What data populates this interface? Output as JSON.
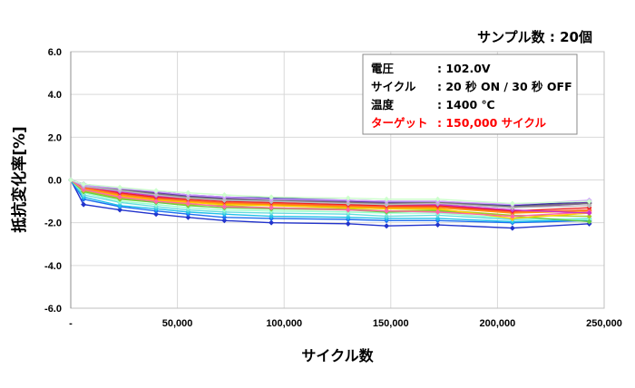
{
  "chart_data": {
    "type": "line",
    "xlabel": "サイクル数",
    "ylabel": "抵抗変化率[%]",
    "xlim": [
      0,
      250000
    ],
    "ylim": [
      -6.0,
      6.0
    ],
    "x_ticks": [
      0,
      50000,
      100000,
      150000,
      200000,
      250000
    ],
    "x_tick_labels": [
      "-",
      "50,000",
      "100,000",
      "150,000",
      "200,000",
      "250,000"
    ],
    "y_ticks": [
      6.0,
      4.0,
      2.0,
      0.0,
      -2.0,
      -4.0,
      -6.0
    ],
    "y_tick_labels": [
      "6.0",
      "4.0",
      "2.0",
      "0.0",
      "-2.0",
      "-4.0",
      "-6.0"
    ],
    "grid": true,
    "sample_count_label": "サンプル数 : 20個",
    "info_box": [
      {
        "label": "電圧",
        "value": ": 102.0V",
        "color": "#000000"
      },
      {
        "label": "サイクル",
        "value": ": 20 秒 ON / 30 秒 OFF",
        "color": "#000000"
      },
      {
        "label": "温度",
        "value": ": 1400 ℃",
        "color": "#000000"
      },
      {
        "label": "ターゲット",
        "value": ": 150,000 サイクル",
        "color": "#ff0000"
      }
    ],
    "x": [
      0,
      6000,
      23000,
      40000,
      55000,
      72000,
      94000,
      130000,
      148000,
      172000,
      207000,
      243000
    ],
    "series": [
      {
        "color": "#2233cc",
        "marker": "diamond",
        "values": [
          0,
          -1.15,
          -1.4,
          -1.6,
          -1.75,
          -1.9,
          -2.0,
          -2.05,
          -2.15,
          -2.1,
          -2.25,
          -2.05
        ]
      },
      {
        "color": "#1e6ff0",
        "marker": "diamond",
        "values": [
          0,
          -0.9,
          -1.25,
          -1.45,
          -1.6,
          -1.75,
          -1.8,
          -1.85,
          -1.9,
          -1.9,
          -2.0,
          -1.9
        ]
      },
      {
        "color": "#22c0e8",
        "marker": "diamond",
        "values": [
          0,
          -0.8,
          -1.2,
          -1.35,
          -1.5,
          -1.6,
          -1.7,
          -1.75,
          -1.8,
          -1.8,
          -1.95,
          -1.85
        ]
      },
      {
        "color": "#66dddd",
        "marker": "diamond",
        "values": [
          0,
          -0.7,
          -1.05,
          -1.25,
          -1.4,
          -1.5,
          -1.55,
          -1.6,
          -1.7,
          -1.65,
          -1.85,
          -1.8
        ]
      },
      {
        "color": "#99ffcc",
        "marker": "diamond",
        "values": [
          0,
          -0.6,
          -1.0,
          -1.15,
          -1.3,
          -1.4,
          -1.45,
          -1.5,
          -1.55,
          -1.55,
          -1.8,
          -1.85
        ]
      },
      {
        "color": "#66cc44",
        "marker": "diamond",
        "values": [
          0,
          -0.55,
          -0.9,
          -1.05,
          -1.2,
          -1.3,
          -1.35,
          -1.4,
          -1.5,
          -1.45,
          -1.7,
          -1.95
        ]
      },
      {
        "color": "#aacc22",
        "marker": "diamond",
        "values": [
          0,
          -0.5,
          -0.85,
          -1.0,
          -1.15,
          -1.2,
          -1.3,
          -1.35,
          -1.45,
          -1.4,
          -1.65,
          -1.7
        ]
      },
      {
        "color": "#ffcc00",
        "marker": "diamond",
        "values": [
          0,
          -0.45,
          -0.75,
          -0.95,
          -1.05,
          -1.15,
          -1.2,
          -1.3,
          -1.35,
          -1.35,
          -1.8,
          -1.55
        ]
      },
      {
        "color": "#ff9900",
        "marker": "diamond",
        "values": [
          0,
          -0.4,
          -0.7,
          -0.9,
          -1.0,
          -1.1,
          -1.15,
          -1.25,
          -1.3,
          -1.3,
          -1.55,
          -1.45
        ]
      },
      {
        "color": "#ff6633",
        "marker": "diamond",
        "values": [
          0,
          -0.35,
          -0.65,
          -0.85,
          -0.95,
          -1.05,
          -1.1,
          -1.2,
          -1.25,
          -1.25,
          -1.5,
          -1.4
        ]
      },
      {
        "color": "#ee2222",
        "marker": "diamond",
        "values": [
          0,
          -0.3,
          -0.6,
          -0.8,
          -0.9,
          -1.0,
          -1.05,
          -1.15,
          -1.2,
          -1.2,
          -1.45,
          -1.3
        ]
      },
      {
        "color": "#ff66aa",
        "marker": "diamond",
        "values": [
          0,
          -0.45,
          -0.8,
          -1.0,
          -1.1,
          -1.25,
          -1.3,
          -1.4,
          -1.45,
          -1.5,
          -1.7,
          -1.5
        ]
      },
      {
        "color": "#cc33cc",
        "marker": "diamond",
        "values": [
          0,
          -0.3,
          -0.55,
          -0.75,
          -0.85,
          -0.95,
          -1.0,
          -1.1,
          -1.15,
          -1.15,
          -1.4,
          -1.55
        ]
      },
      {
        "color": "#9933cc",
        "marker": "diamond",
        "values": [
          0,
          -0.25,
          -0.5,
          -0.7,
          -0.8,
          -0.9,
          -0.95,
          -1.05,
          -1.1,
          -1.1,
          -1.3,
          -1.1
        ]
      },
      {
        "color": "#6633aa",
        "marker": "diamond",
        "values": [
          0,
          -0.2,
          -0.45,
          -0.6,
          -0.75,
          -0.85,
          -0.9,
          -1.0,
          -1.05,
          -1.05,
          -1.25,
          -1.05
        ]
      },
      {
        "color": "#333399",
        "marker": "diamond",
        "values": [
          0,
          -0.2,
          -0.4,
          -0.55,
          -0.7,
          -0.8,
          -0.85,
          -0.95,
          -1.0,
          -1.0,
          -1.2,
          -1.0
        ]
      },
      {
        "color": "#777777",
        "marker": "diamond",
        "values": [
          0,
          -0.25,
          -0.45,
          -0.65,
          -0.8,
          -0.9,
          -0.95,
          -1.05,
          -1.1,
          -1.05,
          -1.25,
          -1.1
        ]
      },
      {
        "color": "#bbbbbb",
        "marker": "diamond",
        "values": [
          0,
          -0.3,
          -0.5,
          -0.7,
          -0.85,
          -0.95,
          -1.0,
          -1.1,
          -1.15,
          -1.1,
          -1.3,
          -1.2
        ]
      },
      {
        "color": "#cc99ff",
        "marker": "diamond",
        "values": [
          0,
          -0.25,
          -0.4,
          -0.55,
          -0.7,
          -0.8,
          -0.9,
          -0.95,
          -1.0,
          -1.0,
          -1.15,
          -0.95
        ]
      },
      {
        "color": "#ccffcc",
        "marker": "diamond",
        "values": [
          0,
          -0.2,
          -0.35,
          -0.5,
          -0.6,
          -0.7,
          -0.8,
          -0.85,
          -0.9,
          -0.9,
          -1.1,
          -1.0
        ]
      }
    ]
  }
}
